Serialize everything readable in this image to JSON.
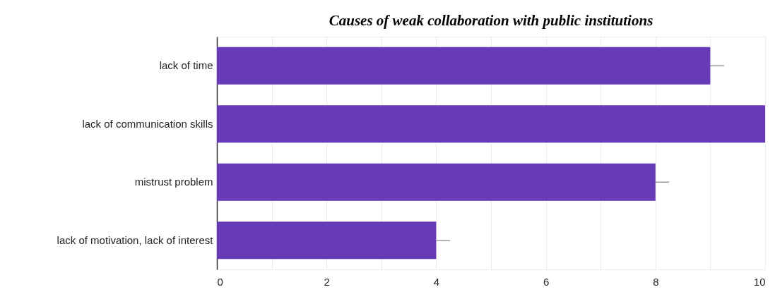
{
  "chart_data": {
    "type": "bar",
    "orientation": "horizontal",
    "title": "Causes of weak collaboration with public institutions",
    "categories": [
      "lack of time",
      "lack of communication skills",
      "mistrust problem",
      "lack of motivation, lack of interest"
    ],
    "values": [
      9,
      10,
      8,
      4
    ],
    "errors": [
      [
        9,
        9.25
      ],
      null,
      [
        8,
        8.25
      ],
      [
        4,
        4.25
      ]
    ],
    "color": "#673ab7",
    "xlim": [
      0,
      10
    ],
    "xticks": [
      0,
      {
        "value": 1,
        "label": null
      },
      2,
      {
        "value": 3,
        "label": null
      },
      4,
      {
        "value": 5,
        "label": null
      },
      6,
      {
        "value": 7,
        "label": null
      },
      8,
      {
        "value": 9,
        "label": null
      },
      10
    ],
    "grid": true
  }
}
